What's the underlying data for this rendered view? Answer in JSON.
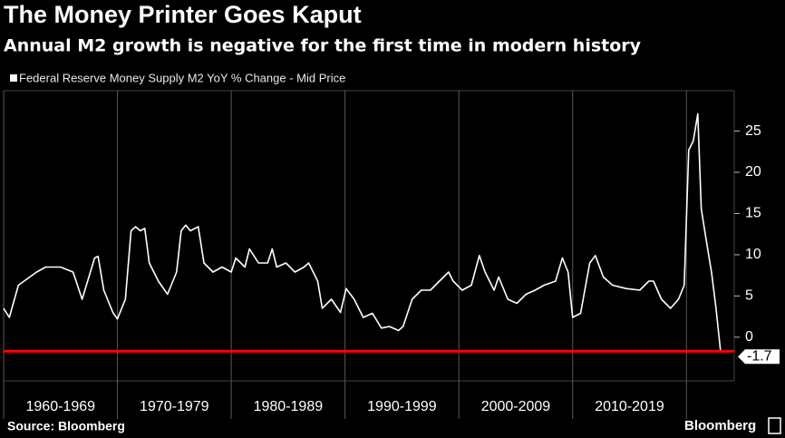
{
  "chart_data": {
    "type": "line",
    "title": "The Money Printer Goes Kaput",
    "subtitle": "Annual M2 growth is negative for the first time in modern history",
    "source": "Source: Bloomberg",
    "brand": "Bloomberg",
    "xlim": [
      1960,
      2024.2
    ],
    "ylim": [
      -5.3,
      29.9
    ],
    "yticks": [
      0,
      5,
      10,
      15,
      20,
      25
    ],
    "xticks": [
      {
        "value": 1960,
        "label": "1960-1969"
      },
      {
        "value": 1970,
        "label": "1970-1979"
      },
      {
        "value": 1980,
        "label": "1980-1989"
      },
      {
        "value": 1990,
        "label": "1990-1999"
      },
      {
        "value": 2000,
        "label": "2000-2009"
      },
      {
        "value": 2010,
        "label": "2010-2019"
      }
    ],
    "series": [
      {
        "name": "Federal Reserve Money Supply M2 YoY % Change - Mid Price",
        "color": "#ffffff",
        "x": [
          1960.0,
          1960.5,
          1961.3,
          1962.9,
          1963.7,
          1965.0,
          1966.1,
          1966.9,
          1968.0,
          1968.3,
          1968.8,
          1969.6,
          1970.0,
          1970.7,
          1971.2,
          1971.6,
          1972.0,
          1972.4,
          1972.8,
          1973.6,
          1974.4,
          1975.2,
          1975.6,
          1976.0,
          1976.4,
          1977.1,
          1977.6,
          1978.4,
          1979.2,
          1980.0,
          1980.4,
          1981.2,
          1981.6,
          1982.4,
          1983.2,
          1983.6,
          1984.0,
          1984.8,
          1985.6,
          1986.4,
          1986.8,
          1987.6,
          1988.0,
          1988.8,
          1989.6,
          1990.1,
          1990.8,
          1991.6,
          1992.4,
          1993.2,
          1993.9,
          1994.7,
          1995.1,
          1995.9,
          1996.7,
          1997.5,
          1998.3,
          1999.1,
          1999.5,
          2000.3,
          2001.1,
          2001.8,
          2002.3,
          2003.1,
          2003.5,
          2004.3,
          2005.1,
          2005.9,
          2006.7,
          2007.5,
          2008.5,
          2009.1,
          2009.6,
          2010.0,
          2010.7,
          2011.5,
          2012.0,
          2012.7,
          2013.5,
          2014.7,
          2015.9,
          2016.7,
          2017.1,
          2017.8,
          2018.6,
          2019.3,
          2019.8,
          2020.2,
          2020.6,
          2021.0,
          2021.3,
          2021.7,
          2022.2,
          2022.6,
          2023.0
        ],
        "values": [
          3.5,
          2.4,
          6.3,
          7.9,
          8.5,
          8.5,
          7.9,
          4.6,
          9.6,
          9.8,
          5.7,
          3.0,
          2.2,
          4.6,
          12.9,
          13.4,
          12.9,
          13.2,
          9.0,
          6.8,
          5.2,
          7.9,
          12.9,
          13.6,
          12.9,
          13.4,
          9.0,
          7.9,
          8.5,
          7.9,
          9.6,
          8.5,
          10.7,
          9.0,
          9.0,
          10.7,
          8.5,
          9.0,
          7.9,
          8.5,
          9.0,
          6.8,
          3.5,
          4.6,
          3.0,
          5.9,
          4.6,
          2.4,
          2.9,
          1.1,
          1.3,
          0.8,
          1.3,
          4.6,
          5.7,
          5.7,
          6.8,
          7.9,
          6.8,
          5.7,
          6.3,
          9.9,
          7.9,
          5.7,
          7.3,
          4.6,
          4.1,
          5.2,
          5.7,
          6.3,
          6.8,
          9.6,
          7.9,
          2.4,
          2.9,
          9.0,
          9.9,
          7.3,
          6.3,
          5.9,
          5.7,
          6.8,
          6.8,
          4.6,
          3.5,
          4.6,
          6.3,
          22.7,
          23.8,
          27.1,
          15.6,
          12.1,
          7.9,
          3.5,
          -1.7
        ]
      }
    ],
    "last_value": {
      "value": -1.7,
      "label": "-1.7",
      "color": "#ff0000"
    }
  }
}
